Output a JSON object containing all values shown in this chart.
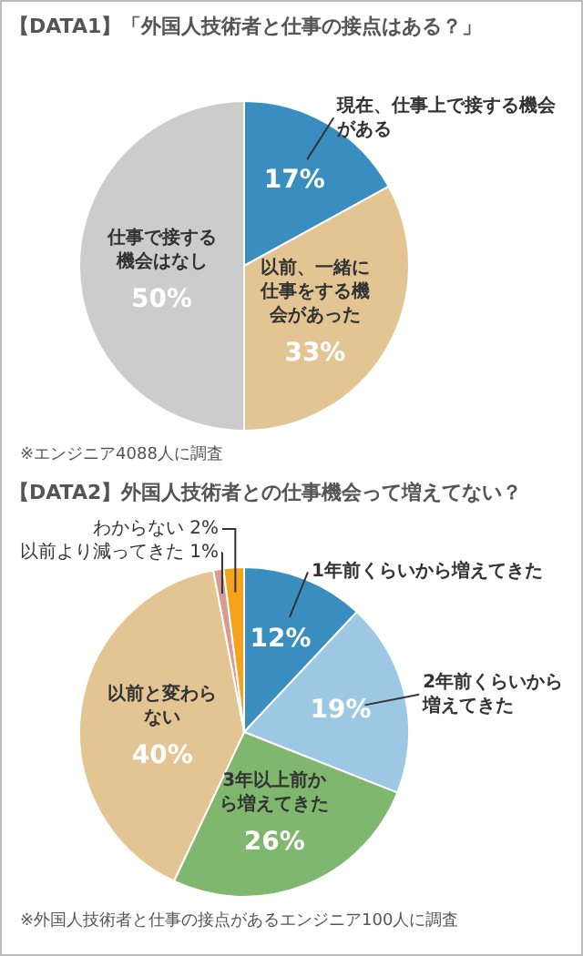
{
  "chart_data": [
    {
      "type": "pie",
      "title": "【DATA1】「外国人技術者と仕事の接点はある？」",
      "categories": [
        "現在、仕事上で接する機会がある",
        "以前、一緒に仕事をする機会があった",
        "仕事で接する機会はなし"
      ],
      "values": [
        17,
        33,
        50
      ],
      "value_labels": [
        "17%",
        "33%",
        "50%"
      ],
      "colors": [
        "#3a8dbf",
        "#e3c594",
        "#cccccc"
      ],
      "legend": false,
      "annotations": [
        "※エンジニア4088人に調査"
      ]
    },
    {
      "type": "pie",
      "title": "【DATA2】外国人技術者との仕事機会って増えてない？",
      "categories": [
        "1年前くらいから増えてきた",
        "2年前くらいから増えてきた",
        "3年以上前から増えてきた",
        "以前と変わらない",
        "以前より減ってきた",
        "わからない"
      ],
      "values": [
        12,
        19,
        26,
        40,
        1,
        2
      ],
      "value_labels": [
        "12%",
        "19%",
        "26%",
        "40%",
        "1%",
        "2%"
      ],
      "colors": [
        "#3a8dbf",
        "#9cc8e3",
        "#80b76e",
        "#e3c594",
        "#d99a94",
        "#f7a21b"
      ],
      "legend": false,
      "annotations": [
        "※外国人技術者と仕事の接点があるエンジニア100人に調査"
      ]
    }
  ]
}
